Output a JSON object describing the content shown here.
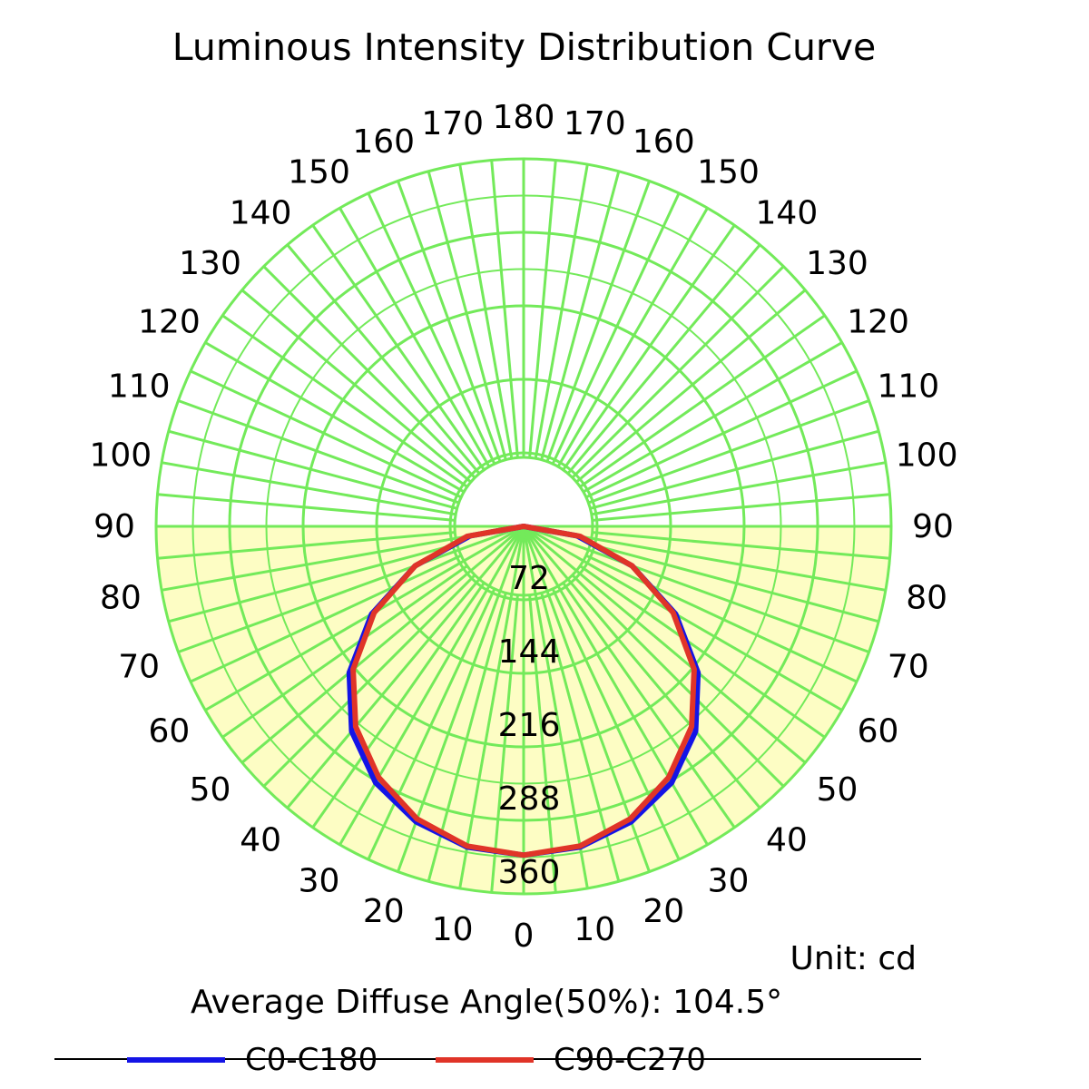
{
  "chart_data": {
    "type": "polar",
    "title": "Luminous Intensity Distribution Curve",
    "unit_label": "Unit: cd",
    "note": "Average Diffuse Angle(50%): 104.5°",
    "angle_ticks": [
      0,
      10,
      20,
      30,
      40,
      50,
      60,
      70,
      80,
      90,
      100,
      110,
      120,
      130,
      140,
      150,
      160,
      170,
      180
    ],
    "radial_ticks": [
      72,
      144,
      216,
      288,
      360
    ],
    "rmax": 360,
    "grid": true,
    "colors": {
      "grid": "#73ea5a",
      "fill": "#fdfdc4",
      "c0": "#1414e6",
      "c90": "#e03428"
    },
    "series": [
      {
        "name": "C0-C180",
        "color": "#1414e6",
        "angles": [
          0,
          10,
          20,
          30,
          40,
          50,
          60,
          70,
          80,
          90
        ],
        "values": [
          322,
          319,
          308,
          290,
          262,
          223,
          172,
          113,
          53,
          0
        ]
      },
      {
        "name": "C90-C270",
        "color": "#e03428",
        "angles": [
          0,
          10,
          20,
          30,
          40,
          50,
          60,
          70,
          80,
          90
        ],
        "values": [
          322,
          318,
          305,
          284,
          256,
          218,
          169,
          113,
          56,
          0
        ]
      }
    ]
  }
}
